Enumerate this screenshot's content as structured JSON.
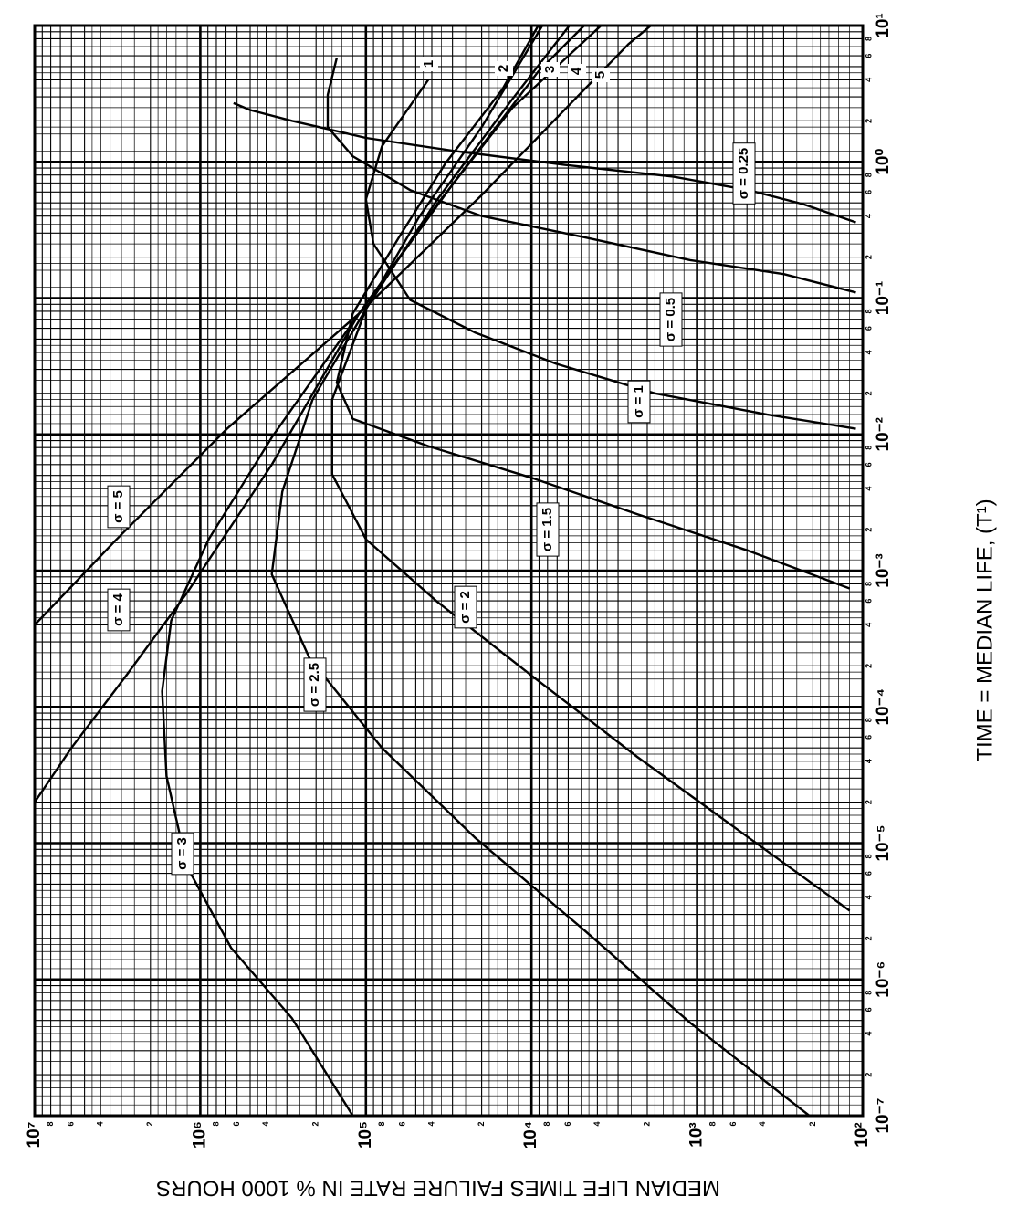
{
  "chart_data": {
    "type": "line",
    "xlabel": "TIME = MEDIAN LIFE, (T¹)",
    "ylabel": "MEDIAN LIFE TIMES FAILURE RATE IN % 1000 HOURS",
    "xscale": "log",
    "yscale": "log",
    "grid": true,
    "xlim": [
      1e-07,
      10
    ],
    "ylim": [
      100,
      10000000
    ],
    "xticks": [
      {
        "value": 1e-07,
        "label": "10⁻⁷"
      },
      {
        "value": 1e-06,
        "label": "10⁻⁶"
      },
      {
        "value": 1e-05,
        "label": "10⁻⁵"
      },
      {
        "value": 0.0001,
        "label": "10⁻⁴"
      },
      {
        "value": 0.001,
        "label": "10⁻³"
      },
      {
        "value": 0.01,
        "label": "10⁻²"
      },
      {
        "value": 0.1,
        "label": "10⁻¹"
      },
      {
        "value": 1,
        "label": "10⁰"
      },
      {
        "value": 10,
        "label": "10¹"
      }
    ],
    "yticks": [
      {
        "value": 100,
        "label": "10²"
      },
      {
        "value": 1000,
        "label": "10³"
      },
      {
        "value": 10000,
        "label": "10⁴"
      },
      {
        "value": 100000,
        "label": "10⁵"
      },
      {
        "value": 1000000,
        "label": "10⁶"
      },
      {
        "value": 10000000,
        "label": "10⁷"
      }
    ],
    "minor_ticks": [
      2,
      4,
      6,
      8
    ],
    "annotations": [
      "1",
      "2",
      "3",
      "4",
      "5"
    ],
    "series": [
      {
        "name": "σ = 0.25",
        "color": "#000000",
        "x": [
          0.36,
          0.49,
          0.62,
          0.78,
          0.95,
          1.2,
          1.5,
          2.0,
          2.4,
          2.7
        ],
        "values": [
          110,
          230,
          490,
          1400,
          6300,
          29000,
          100000,
          280000,
          500000,
          630000
        ]
      },
      {
        "name": "σ = 0.5",
        "color": "#000000",
        "x": [
          0.11,
          0.15,
          0.19,
          0.28,
          0.4,
          0.62,
          1.1,
          1.8,
          3.1,
          5.8
        ],
        "values": [
          110,
          300,
          1100,
          4800,
          20000,
          54000,
          120000,
          170000,
          170000,
          150000
        ]
      },
      {
        "name": "σ = 1",
        "color": "#000000",
        "x": [
          0.011,
          0.014,
          0.02,
          0.033,
          0.056,
          0.097,
          0.25,
          0.53,
          1.3,
          4.0
        ],
        "values": [
          110,
          380,
          1800,
          7100,
          22000,
          54000,
          90000,
          100000,
          80000,
          42000
        ]
      },
      {
        "name": "σ = 1.5",
        "color": "#000000",
        "x": [
          0.00074,
          0.0014,
          0.0026,
          0.0048,
          0.0082,
          0.013,
          0.024,
          0.077,
          0.29,
          0.98,
          3.4,
          10
        ],
        "values": [
          120,
          490,
          2300,
          10000,
          42000,
          120000,
          150000,
          120000,
          62000,
          33000,
          15000,
          9100
        ]
      },
      {
        "name": "σ = 2",
        "color": "#000000",
        "x": [
          3.2e-06,
          1.1e-05,
          4.3e-05,
          0.00017,
          0.00059,
          0.0017,
          0.0051,
          0.018,
          0.083,
          0.39,
          1.8,
          10
        ],
        "values": [
          120,
          490,
          2300,
          10000,
          37000,
          100000,
          160000,
          160000,
          100000,
          48000,
          20000,
          8600
        ]
      },
      {
        "name": "σ = 2.5",
        "color": "#000000",
        "x": [
          1e-07,
          4.8e-07,
          2.3e-06,
          1.1e-05,
          5e-05,
          0.00023,
          0.00094,
          0.0038,
          0.018,
          0.083,
          0.53,
          2.9,
          10
        ],
        "values": [
          210,
          1100,
          4800,
          22000,
          80000,
          220000,
          370000,
          320000,
          210000,
          100000,
          37000,
          13000,
          5900
        ]
      },
      {
        "name": "σ = 3",
        "color": "#000000",
        "x": [
          1e-07,
          5.2e-07,
          1.7e-06,
          6.7e-06,
          3.1e-05,
          0.00013,
          0.00043,
          0.0017,
          0.0095,
          0.077,
          0.72,
          4.6,
          10
        ],
        "values": [
          120000,
          280000,
          650000,
          1200000,
          1600000,
          1700000,
          1500000,
          890000,
          370000,
          110000,
          29000,
          9100,
          4800
        ]
      },
      {
        "name": "σ = 4",
        "color": "#000000",
        "x": [
          2e-05,
          5e-05,
          0.00017,
          0.00069,
          0.006,
          0.077,
          0.49,
          2.5,
          10
        ],
        "values": [
          10000000,
          6000000,
          2800000,
          1200000,
          370000,
          110000,
          37000,
          13000,
          3800
        ]
      },
      {
        "name": "σ = 5",
        "color": "#000000",
        "x": [
          0.0004,
          0.0017,
          0.011,
          0.077,
          0.57,
          7.3,
          10
        ],
        "values": [
          10000000,
          3200000,
          690000,
          110000,
          20000,
          2600,
          1900
        ]
      }
    ]
  }
}
